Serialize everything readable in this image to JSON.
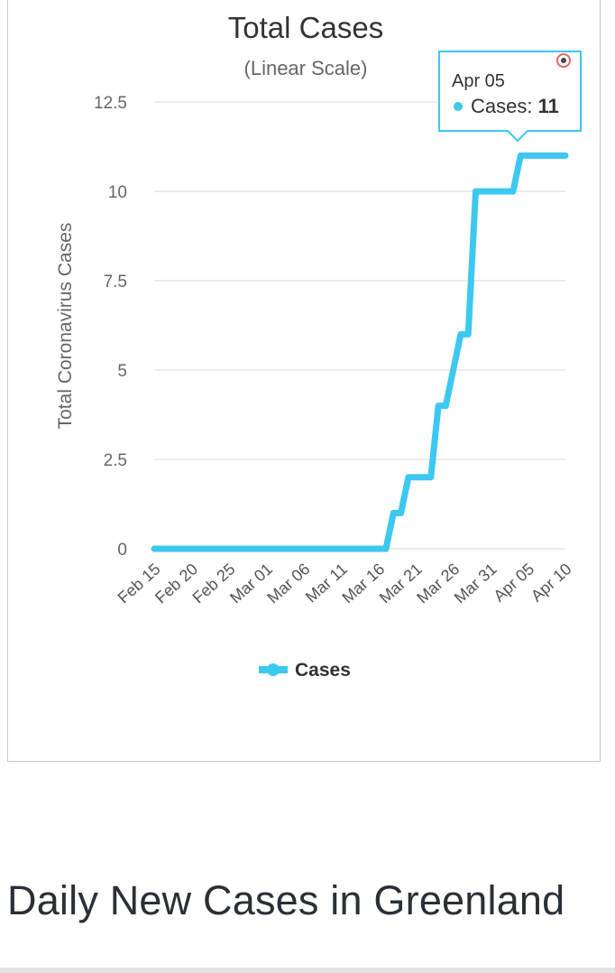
{
  "chart_data": {
    "type": "line",
    "title": "Total Cases",
    "subtitle": "(Linear Scale)",
    "ylabel": "Total Coronavirus Cases",
    "xlabel": "",
    "ylim": [
      0,
      12.5
    ],
    "yticks": [
      "0",
      "2.5",
      "5",
      "7.5",
      "10",
      "12.5"
    ],
    "ytick_values": [
      0,
      2.5,
      5,
      7.5,
      10,
      12.5
    ],
    "xticks": [
      "Feb 15",
      "Feb 20",
      "Feb 25",
      "Mar 01",
      "Mar 06",
      "Mar 11",
      "Mar 16",
      "Mar 21",
      "Mar 26",
      "Mar 31",
      "Apr 05",
      "Apr 10"
    ],
    "grid": true,
    "legend_position": "bottom-center",
    "series": [
      {
        "name": "Cases",
        "color": "#3cc8f0",
        "points": [
          [
            "Feb 15",
            0
          ],
          [
            "Mar 17",
            0
          ],
          [
            "Mar 18",
            1
          ],
          [
            "Mar 19",
            1
          ],
          [
            "Mar 20",
            2
          ],
          [
            "Mar 23",
            2
          ],
          [
            "Mar 24",
            4
          ],
          [
            "Mar 25",
            4
          ],
          [
            "Mar 27",
            6
          ],
          [
            "Mar 28",
            6
          ],
          [
            "Mar 29",
            10
          ],
          [
            "Apr 03",
            10
          ],
          [
            "Apr 04",
            11
          ],
          [
            "Apr 10",
            11
          ]
        ]
      }
    ],
    "tooltip": {
      "date": "Apr 05",
      "series_label": "Cases: ",
      "value": "11"
    }
  },
  "section": {
    "heading": "Daily New Cases in Greenland"
  }
}
